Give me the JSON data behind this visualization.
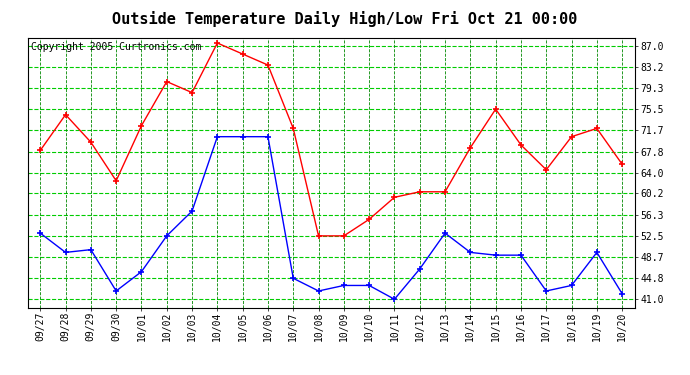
{
  "title": "Outside Temperature Daily High/Low Fri Oct 21 00:00",
  "copyright": "Copyright 2005 Curtronics.com",
  "x_labels": [
    "09/27",
    "09/28",
    "09/29",
    "09/30",
    "10/01",
    "10/02",
    "10/03",
    "10/04",
    "10/05",
    "10/06",
    "10/07",
    "10/08",
    "10/09",
    "10/10",
    "10/11",
    "10/12",
    "10/13",
    "10/14",
    "10/15",
    "10/16",
    "10/17",
    "10/18",
    "10/19",
    "10/20"
  ],
  "high_values": [
    68.0,
    74.5,
    69.5,
    62.5,
    72.5,
    80.5,
    78.5,
    87.5,
    85.5,
    83.5,
    72.0,
    52.5,
    52.5,
    55.5,
    59.5,
    60.5,
    60.5,
    68.5,
    75.5,
    69.0,
    64.5,
    70.5,
    72.0,
    65.5
  ],
  "low_values": [
    53.0,
    49.5,
    50.0,
    42.5,
    46.0,
    52.5,
    57.0,
    70.5,
    70.5,
    70.5,
    44.8,
    42.5,
    43.5,
    43.5,
    41.0,
    46.5,
    53.0,
    49.5,
    49.0,
    49.0,
    42.5,
    43.5,
    49.5,
    42.0
  ],
  "high_color": "#ff0000",
  "low_color": "#0000ff",
  "grid_h_color": "#00cc00",
  "grid_v_color": "#008800",
  "bg_color": "#ffffff",
  "y_ticks": [
    41.0,
    44.8,
    48.7,
    52.5,
    56.3,
    60.2,
    64.0,
    67.8,
    71.7,
    75.5,
    79.3,
    83.2,
    87.0
  ],
  "ylim": [
    39.5,
    88.5
  ],
  "title_fontsize": 11,
  "tick_fontsize": 7,
  "copyright_fontsize": 7
}
